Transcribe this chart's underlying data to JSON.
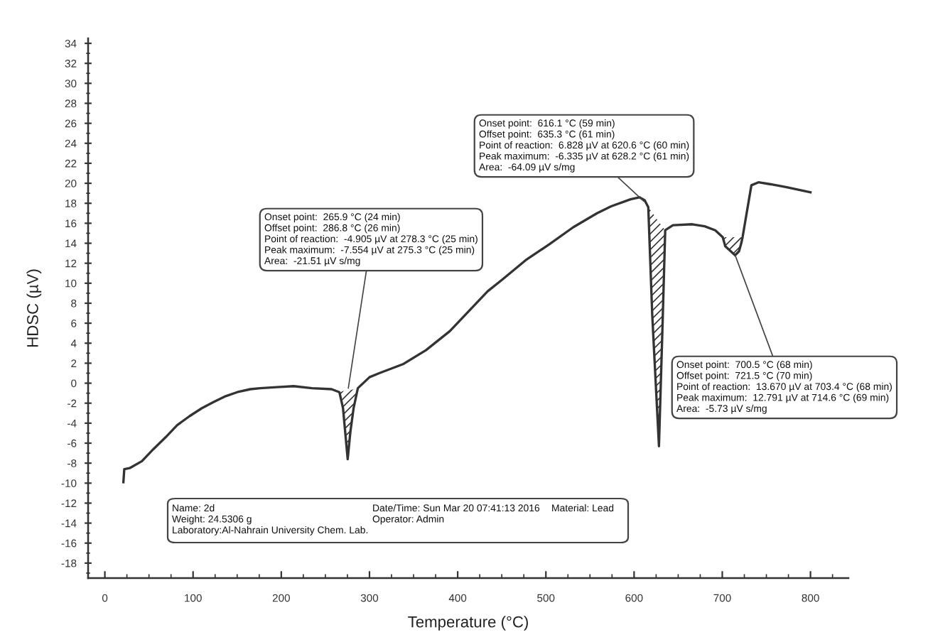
{
  "chart_data": {
    "type": "line",
    "xlabel": "Temperature (°C)",
    "ylabel": "HDSC (µV)",
    "line_style": "solid",
    "xlim": [
      -19,
      843
    ],
    "ylim": [
      -19.5,
      34.5
    ],
    "xticks": [
      0,
      {
        "value": 25,
        "label": null
      },
      {
        "value": 50,
        "label": null
      },
      {
        "value": 75,
        "label": null
      },
      100,
      {
        "value": 125,
        "label": null
      },
      {
        "value": 150,
        "label": null
      },
      {
        "value": 175,
        "label": null
      },
      200,
      {
        "value": 225,
        "label": null
      },
      {
        "value": 250,
        "label": null
      },
      {
        "value": 275,
        "label": null
      },
      300,
      {
        "value": 325,
        "label": null
      },
      {
        "value": 350,
        "label": null
      },
      {
        "value": 375,
        "label": null
      },
      400,
      {
        "value": 425,
        "label": null
      },
      {
        "value": 450,
        "label": null
      },
      {
        "value": 475,
        "label": null
      },
      500,
      {
        "value": 525,
        "label": null
      },
      {
        "value": 550,
        "label": null
      },
      {
        "value": 575,
        "label": null
      },
      600,
      {
        "value": 625,
        "label": null
      },
      {
        "value": 650,
        "label": null
      },
      {
        "value": 675,
        "label": null
      },
      700,
      {
        "value": 725,
        "label": null
      },
      {
        "value": 750,
        "label": null
      },
      {
        "value": 775,
        "label": null
      },
      800,
      {
        "value": 825,
        "label": null
      }
    ],
    "yticks": [
      {
        "value": -19,
        "label": null
      },
      -18,
      {
        "value": -17,
        "label": null
      },
      -16,
      {
        "value": -15,
        "label": null
      },
      -14,
      {
        "value": -13,
        "label": null
      },
      -12,
      {
        "value": -11,
        "label": null
      },
      -10,
      {
        "value": -9,
        "label": null
      },
      -8,
      {
        "value": -7,
        "label": null
      },
      -6,
      {
        "value": -5,
        "label": null
      },
      -4,
      {
        "value": -3,
        "label": null
      },
      -2,
      {
        "value": -1,
        "label": null
      },
      0,
      {
        "value": 1,
        "label": null
      },
      2,
      {
        "value": 3,
        "label": null
      },
      4,
      {
        "value": 5,
        "label": null
      },
      6,
      {
        "value": 7,
        "label": null
      },
      8,
      {
        "value": 9,
        "label": null
      },
      10,
      {
        "value": 11,
        "label": null
      },
      12,
      {
        "value": 13,
        "label": null
      },
      14,
      {
        "value": 15,
        "label": null
      },
      16,
      {
        "value": 17,
        "label": null
      },
      18,
      {
        "value": 19,
        "label": null
      },
      20,
      {
        "value": 21,
        "label": null
      },
      22,
      {
        "value": 23,
        "label": null
      },
      24,
      {
        "value": 25,
        "label": null
      },
      26,
      {
        "value": 27,
        "label": null
      },
      28,
      {
        "value": 29,
        "label": null
      },
      30,
      {
        "value": 31,
        "label": null
      },
      32,
      {
        "value": 33,
        "label": null
      },
      34
    ],
    "series": [
      {
        "color": "#333333",
        "x": [
          21,
          22,
          28,
          42,
          55,
          69,
          82,
          96,
          110,
          123,
          137,
          150,
          165,
          176,
          195,
          214,
          235,
          257,
          265.9,
          270,
          275.3,
          278.3,
          282,
          286.8,
          300,
          311,
          338,
          364,
          391,
          434,
          451,
          477,
          504,
          531,
          558,
          574,
          596,
          606,
          612,
          616.1,
          620.6,
          628.2,
          632,
          635.3,
          644,
          666,
          680,
          692,
          700.5,
          703.4,
          714.6,
          719,
          721.5,
          723,
          733,
          741,
          755,
          773,
          800
        ],
        "values": [
          -9.9,
          -8.6,
          -8.5,
          -7.8,
          -6.6,
          -5.4,
          -4.2,
          -3.3,
          -2.5,
          -1.9,
          -1.3,
          -0.9,
          -0.6,
          -0.5,
          -0.4,
          -0.3,
          -0.5,
          -0.6,
          -0.9,
          -2.5,
          -7.6,
          -4.9,
          -2.5,
          -0.5,
          0.6,
          1.0,
          1.9,
          3.3,
          5.2,
          9.2,
          10.4,
          12.3,
          13.9,
          15.6,
          17.0,
          17.7,
          18.4,
          18.6,
          18.3,
          17.6,
          6.8,
          -6.3,
          5.0,
          15.3,
          15.8,
          15.9,
          15.7,
          15.3,
          14.6,
          13.7,
          12.8,
          13.2,
          14.0,
          14.6,
          19.8,
          20.1,
          19.9,
          19.6,
          19.1
        ],
        "lower": [
          null,
          null,
          null,
          null,
          null,
          null,
          null,
          null,
          null,
          null,
          null,
          null,
          null,
          null,
          null,
          null,
          null,
          null,
          -0.9,
          -0.8,
          -0.7,
          -0.7,
          -0.6,
          -0.5,
          null,
          null,
          null,
          null,
          null,
          null,
          null,
          null,
          null,
          null,
          null,
          null,
          null,
          null,
          null,
          17.6,
          17.1,
          16.1,
          15.7,
          15.3,
          null,
          null,
          null,
          null,
          14.6,
          14.6,
          14.6,
          14.6,
          14.6,
          14.6,
          null,
          null,
          null,
          null,
          null
        ],
        "upper": [
          null,
          null,
          null,
          null,
          null,
          null,
          null,
          null,
          null,
          null,
          null,
          null,
          null,
          null,
          null,
          null,
          null,
          null,
          -0.9,
          -2.5,
          -7.6,
          -4.9,
          -2.5,
          -0.5,
          null,
          null,
          null,
          null,
          null,
          null,
          null,
          null,
          null,
          null,
          null,
          null,
          null,
          null,
          null,
          17.6,
          6.8,
          -6.3,
          5.0,
          15.3,
          null,
          null,
          null,
          null,
          14.6,
          13.7,
          12.8,
          13.2,
          14.0,
          14.6,
          null,
          null,
          null,
          null,
          null
        ]
      }
    ],
    "annotations": [
      {
        "text": "Onset point:  265.9 °C (24 min)\nOffset point:  286.8 °C (26 min)\nPoint of reaction:  -4.905 µV at 278.3 °C (25 min)\nPeak maximum:  -7.554 µV at 275.3 °C (25 min)\nArea:  -21.51 µV s/mg",
        "x": 276,
        "y": -0.5
      },
      {
        "text": "Onset point:  616.1 °C (59 min)\nOffset point:  635.3 °C (61 min)\nPoint of reaction:  6.828 µV at 620.6 °C (60 min)\nPeak maximum:  -6.335 µV at 628.2 °C (61 min)\nArea:  -64.09 µV s/mg",
        "x": 611,
        "y": 18.2
      },
      {
        "text": "Onset point:  700.5 °C (68 min)\nOffset point:  721.5 °C (70 min)\nPoint of reaction:  13.670 µV at 703.4 °C (68 min)\nPeak maximum:  12.791 µV at 714.6 °C (69 min)\nArea:  -5.73 µV s/mg",
        "x": 714.6,
        "y": 12.8
      },
      "Name: 2d\nWeight: 24.5306 g\nLaboratory:Al-Nahrain University Chem. Lab.",
      "Date/Time: Sun Mar 20 07:41:13 2016\nOperator: Admin",
      "Material: Lead"
    ]
  }
}
